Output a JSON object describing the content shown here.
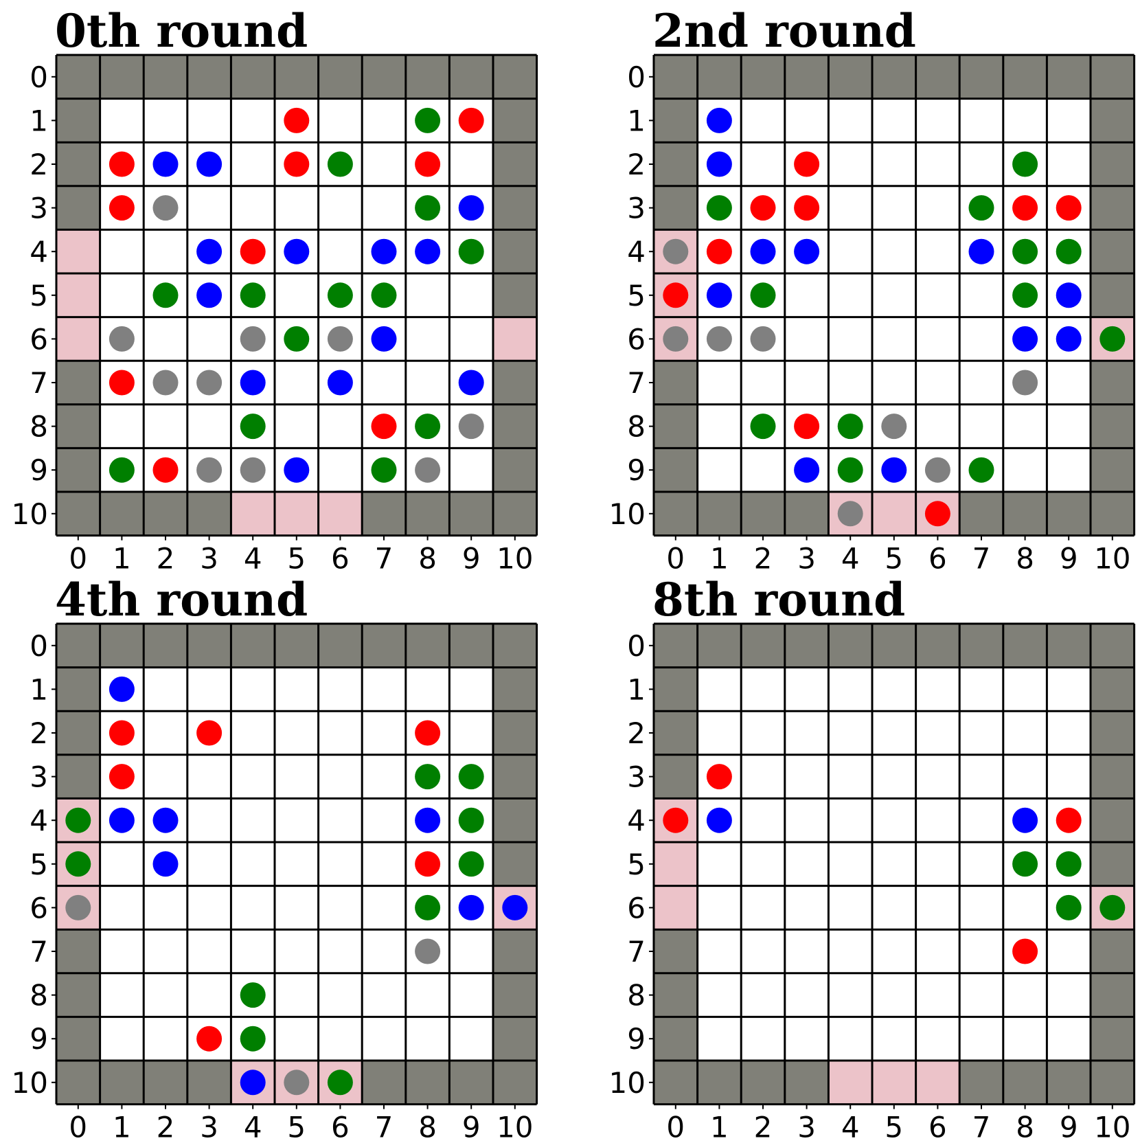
{
  "colors": {
    "wall": "#808078",
    "exit": "#ecc3c9",
    "floor": "#ffffff",
    "grid": "#000000",
    "red": "#ff0000",
    "blue": "#0000ff",
    "green": "#007f00",
    "gray": "#808080"
  },
  "grid": {
    "size": 11,
    "tick_labels": [
      "0",
      "1",
      "2",
      "3",
      "4",
      "5",
      "6",
      "7",
      "8",
      "9",
      "10"
    ]
  },
  "panels": [
    {
      "title": "0th round",
      "exits": [
        [
          0,
          4
        ],
        [
          0,
          5
        ],
        [
          0,
          6
        ],
        [
          10,
          6
        ],
        [
          4,
          10
        ],
        [
          5,
          10
        ],
        [
          6,
          10
        ]
      ],
      "agents": [
        {
          "x": 5,
          "y": 1,
          "c": "red"
        },
        {
          "x": 8,
          "y": 1,
          "c": "green"
        },
        {
          "x": 9,
          "y": 1,
          "c": "red"
        },
        {
          "x": 1,
          "y": 2,
          "c": "red"
        },
        {
          "x": 2,
          "y": 2,
          "c": "blue"
        },
        {
          "x": 3,
          "y": 2,
          "c": "blue"
        },
        {
          "x": 5,
          "y": 2,
          "c": "red"
        },
        {
          "x": 6,
          "y": 2,
          "c": "green"
        },
        {
          "x": 8,
          "y": 2,
          "c": "red"
        },
        {
          "x": 1,
          "y": 3,
          "c": "red"
        },
        {
          "x": 2,
          "y": 3,
          "c": "gray"
        },
        {
          "x": 8,
          "y": 3,
          "c": "green"
        },
        {
          "x": 9,
          "y": 3,
          "c": "blue"
        },
        {
          "x": 3,
          "y": 4,
          "c": "blue"
        },
        {
          "x": 4,
          "y": 4,
          "c": "red"
        },
        {
          "x": 5,
          "y": 4,
          "c": "blue"
        },
        {
          "x": 7,
          "y": 4,
          "c": "blue"
        },
        {
          "x": 8,
          "y": 4,
          "c": "blue"
        },
        {
          "x": 9,
          "y": 4,
          "c": "green"
        },
        {
          "x": 2,
          "y": 5,
          "c": "green"
        },
        {
          "x": 3,
          "y": 5,
          "c": "blue"
        },
        {
          "x": 4,
          "y": 5,
          "c": "green"
        },
        {
          "x": 6,
          "y": 5,
          "c": "green"
        },
        {
          "x": 7,
          "y": 5,
          "c": "green"
        },
        {
          "x": 1,
          "y": 6,
          "c": "gray"
        },
        {
          "x": 4,
          "y": 6,
          "c": "gray"
        },
        {
          "x": 5,
          "y": 6,
          "c": "green"
        },
        {
          "x": 6,
          "y": 6,
          "c": "gray"
        },
        {
          "x": 7,
          "y": 6,
          "c": "blue"
        },
        {
          "x": 1,
          "y": 7,
          "c": "red"
        },
        {
          "x": 2,
          "y": 7,
          "c": "gray"
        },
        {
          "x": 3,
          "y": 7,
          "c": "gray"
        },
        {
          "x": 4,
          "y": 7,
          "c": "blue"
        },
        {
          "x": 6,
          "y": 7,
          "c": "blue"
        },
        {
          "x": 9,
          "y": 7,
          "c": "blue"
        },
        {
          "x": 4,
          "y": 8,
          "c": "green"
        },
        {
          "x": 7,
          "y": 8,
          "c": "red"
        },
        {
          "x": 8,
          "y": 8,
          "c": "green"
        },
        {
          "x": 9,
          "y": 8,
          "c": "gray"
        },
        {
          "x": 1,
          "y": 9,
          "c": "green"
        },
        {
          "x": 2,
          "y": 9,
          "c": "red"
        },
        {
          "x": 3,
          "y": 9,
          "c": "gray"
        },
        {
          "x": 4,
          "y": 9,
          "c": "gray"
        },
        {
          "x": 5,
          "y": 9,
          "c": "blue"
        },
        {
          "x": 7,
          "y": 9,
          "c": "green"
        },
        {
          "x": 8,
          "y": 9,
          "c": "gray"
        }
      ]
    },
    {
      "title": "2nd round",
      "exits": [
        [
          0,
          4
        ],
        [
          0,
          5
        ],
        [
          0,
          6
        ],
        [
          10,
          6
        ],
        [
          4,
          10
        ],
        [
          5,
          10
        ],
        [
          6,
          10
        ]
      ],
      "agents": [
        {
          "x": 1,
          "y": 1,
          "c": "blue"
        },
        {
          "x": 1,
          "y": 2,
          "c": "blue"
        },
        {
          "x": 3,
          "y": 2,
          "c": "red"
        },
        {
          "x": 8,
          "y": 2,
          "c": "green"
        },
        {
          "x": 1,
          "y": 3,
          "c": "green"
        },
        {
          "x": 2,
          "y": 3,
          "c": "red"
        },
        {
          "x": 3,
          "y": 3,
          "c": "red"
        },
        {
          "x": 7,
          "y": 3,
          "c": "green"
        },
        {
          "x": 8,
          "y": 3,
          "c": "red"
        },
        {
          "x": 9,
          "y": 3,
          "c": "red"
        },
        {
          "x": 0,
          "y": 4,
          "c": "gray"
        },
        {
          "x": 1,
          "y": 4,
          "c": "red"
        },
        {
          "x": 2,
          "y": 4,
          "c": "blue"
        },
        {
          "x": 3,
          "y": 4,
          "c": "blue"
        },
        {
          "x": 7,
          "y": 4,
          "c": "blue"
        },
        {
          "x": 8,
          "y": 4,
          "c": "green"
        },
        {
          "x": 9,
          "y": 4,
          "c": "green"
        },
        {
          "x": 0,
          "y": 5,
          "c": "red"
        },
        {
          "x": 1,
          "y": 5,
          "c": "blue"
        },
        {
          "x": 2,
          "y": 5,
          "c": "green"
        },
        {
          "x": 8,
          "y": 5,
          "c": "green"
        },
        {
          "x": 9,
          "y": 5,
          "c": "blue"
        },
        {
          "x": 0,
          "y": 6,
          "c": "gray"
        },
        {
          "x": 1,
          "y": 6,
          "c": "gray"
        },
        {
          "x": 2,
          "y": 6,
          "c": "gray"
        },
        {
          "x": 8,
          "y": 6,
          "c": "blue"
        },
        {
          "x": 9,
          "y": 6,
          "c": "blue"
        },
        {
          "x": 10,
          "y": 6,
          "c": "green"
        },
        {
          "x": 8,
          "y": 7,
          "c": "gray"
        },
        {
          "x": 2,
          "y": 8,
          "c": "green"
        },
        {
          "x": 3,
          "y": 8,
          "c": "red"
        },
        {
          "x": 4,
          "y": 8,
          "c": "green"
        },
        {
          "x": 5,
          "y": 8,
          "c": "gray"
        },
        {
          "x": 3,
          "y": 9,
          "c": "blue"
        },
        {
          "x": 4,
          "y": 9,
          "c": "green"
        },
        {
          "x": 5,
          "y": 9,
          "c": "blue"
        },
        {
          "x": 6,
          "y": 9,
          "c": "gray"
        },
        {
          "x": 7,
          "y": 9,
          "c": "green"
        },
        {
          "x": 4,
          "y": 10,
          "c": "gray"
        },
        {
          "x": 6,
          "y": 10,
          "c": "red"
        }
      ]
    },
    {
      "title": "4th round",
      "exits": [
        [
          0,
          4
        ],
        [
          0,
          5
        ],
        [
          0,
          6
        ],
        [
          10,
          6
        ],
        [
          4,
          10
        ],
        [
          5,
          10
        ],
        [
          6,
          10
        ]
      ],
      "agents": [
        {
          "x": 1,
          "y": 1,
          "c": "blue"
        },
        {
          "x": 1,
          "y": 2,
          "c": "red"
        },
        {
          "x": 3,
          "y": 2,
          "c": "red"
        },
        {
          "x": 8,
          "y": 2,
          "c": "red"
        },
        {
          "x": 1,
          "y": 3,
          "c": "red"
        },
        {
          "x": 8,
          "y": 3,
          "c": "green"
        },
        {
          "x": 9,
          "y": 3,
          "c": "green"
        },
        {
          "x": 0,
          "y": 4,
          "c": "green"
        },
        {
          "x": 1,
          "y": 4,
          "c": "blue"
        },
        {
          "x": 2,
          "y": 4,
          "c": "blue"
        },
        {
          "x": 8,
          "y": 4,
          "c": "blue"
        },
        {
          "x": 9,
          "y": 4,
          "c": "green"
        },
        {
          "x": 0,
          "y": 5,
          "c": "green"
        },
        {
          "x": 2,
          "y": 5,
          "c": "blue"
        },
        {
          "x": 8,
          "y": 5,
          "c": "red"
        },
        {
          "x": 9,
          "y": 5,
          "c": "green"
        },
        {
          "x": 0,
          "y": 6,
          "c": "gray"
        },
        {
          "x": 8,
          "y": 6,
          "c": "green"
        },
        {
          "x": 9,
          "y": 6,
          "c": "blue"
        },
        {
          "x": 10,
          "y": 6,
          "c": "blue"
        },
        {
          "x": 8,
          "y": 7,
          "c": "gray"
        },
        {
          "x": 4,
          "y": 8,
          "c": "green"
        },
        {
          "x": 3,
          "y": 9,
          "c": "red"
        },
        {
          "x": 4,
          "y": 9,
          "c": "green"
        },
        {
          "x": 4,
          "y": 10,
          "c": "blue"
        },
        {
          "x": 5,
          "y": 10,
          "c": "gray"
        },
        {
          "x": 6,
          "y": 10,
          "c": "green"
        }
      ]
    },
    {
      "title": "8th round",
      "exits": [
        [
          0,
          4
        ],
        [
          0,
          5
        ],
        [
          0,
          6
        ],
        [
          10,
          6
        ],
        [
          4,
          10
        ],
        [
          5,
          10
        ],
        [
          6,
          10
        ]
      ],
      "agents": [
        {
          "x": 1,
          "y": 3,
          "c": "red"
        },
        {
          "x": 0,
          "y": 4,
          "c": "red"
        },
        {
          "x": 1,
          "y": 4,
          "c": "blue"
        },
        {
          "x": 8,
          "y": 4,
          "c": "blue"
        },
        {
          "x": 9,
          "y": 4,
          "c": "red"
        },
        {
          "x": 8,
          "y": 5,
          "c": "green"
        },
        {
          "x": 9,
          "y": 5,
          "c": "green"
        },
        {
          "x": 9,
          "y": 6,
          "c": "green"
        },
        {
          "x": 10,
          "y": 6,
          "c": "green"
        },
        {
          "x": 8,
          "y": 7,
          "c": "red"
        }
      ]
    }
  ]
}
